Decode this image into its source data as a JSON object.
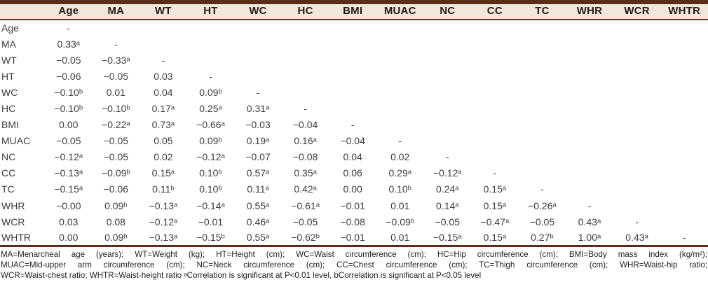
{
  "table": {
    "columns": [
      "",
      "Age",
      "MA",
      "WT",
      "HT",
      "WC",
      "HC",
      "BMI",
      "MUAC",
      "NC",
      "CC",
      "TC",
      "WHR",
      "WCR",
      "WHTR"
    ],
    "rows": [
      {
        "label": "Age",
        "values": [
          "-"
        ]
      },
      {
        "label": "MA",
        "values": [
          "0.33ᵃ",
          "-"
        ]
      },
      {
        "label": "WT",
        "values": [
          "−0.05",
          "−0.33ᵃ",
          "-"
        ]
      },
      {
        "label": "HT",
        "values": [
          "−0.06",
          "−0.05",
          "0.03",
          "-"
        ]
      },
      {
        "label": "WC",
        "values": [
          "−0.10ᵇ",
          "0.01",
          "0.04",
          "0.09ᵇ",
          "-"
        ]
      },
      {
        "label": "HC",
        "values": [
          "−0.10ᵇ",
          "−0.10ᵇ",
          "0.17ᵃ",
          "0.25ᵃ",
          "0.31ᵃ",
          "-"
        ]
      },
      {
        "label": "BMI",
        "values": [
          "0.00",
          "−0.22ᵃ",
          "0.73ᵃ",
          "−0.66ᵃ",
          "−0.03",
          "−0.04",
          "-"
        ]
      },
      {
        "label": "MUAC",
        "values": [
          "−0.05",
          "−0.05",
          "0.05",
          "0.09ᵇ",
          "0.19ᵃ",
          "0.16ᵃ",
          "−0.04",
          "-"
        ]
      },
      {
        "label": "NC",
        "values": [
          "−0.12ᵃ",
          "−0.05",
          "0.02",
          "−0.12ᵃ",
          "−0.07",
          "−0.08",
          "0.04",
          "0.02",
          "-"
        ]
      },
      {
        "label": "CC",
        "values": [
          "−0.13ᵃ",
          "−0.09ᵇ",
          "0.15ᵃ",
          "0.10ᵇ",
          "0.57ᵃ",
          "0.35ᵃ",
          "0.06",
          "0.29ᵃ",
          "−0.12ᵃ",
          "-"
        ]
      },
      {
        "label": "TC",
        "values": [
          "−0.15ᵃ",
          "−0.06",
          "0.11ᵇ",
          "0.10ᵇ",
          "0.11ᵃ",
          "0.42ᵃ",
          "0.00",
          "0.10ᵇ",
          "0.24ᵃ",
          "0.15ᵃ",
          "-"
        ]
      },
      {
        "label": "WHR",
        "values": [
          "−0.00",
          "0.09ᵇ",
          "−0.13ᵃ",
          "−0.14ᵃ",
          "0.55ᵃ",
          "−0.61ᵃ",
          "−0.01",
          "0.01",
          "0.14ᵃ",
          "0.15ᵃ",
          "−0.26ᵃ",
          "-"
        ]
      },
      {
        "label": "WCR",
        "values": [
          "0.03",
          "0.08",
          "−0.12ᵃ",
          "−0.01",
          "0.46ᵃ",
          "−0.05",
          "−0.08",
          "−0.09ᵇ",
          "−0.05",
          "−0.47ᵃ",
          "−0.05",
          "0.43ᵃ",
          "-"
        ]
      },
      {
        "label": "WHTR",
        "values": [
          "0.00",
          "0.09ᵇ",
          "−0.13ᵃ",
          "−0.15ᵇ",
          "0.55ᵃ",
          "−0.62ᵇ",
          "−0.01",
          "0.01",
          "−0.15ᵃ",
          "0.15ᵃ",
          "0.27ᵇ",
          "1.00ᵃ",
          "0.43ᵃ",
          "-"
        ]
      }
    ],
    "significance_markers": {
      "a": "P<0.01",
      "b": "P<0.05"
    }
  },
  "footer": {
    "lines": [
      "MA=Menarcheal age (years); WT=Weight (kg); HT=Height (cm); WC=Waist circumference (cm); HC=Hip circumference (cm); BMI=Body mass index (kg/m²);",
      "MUAC=Mid-upper arm circumference (cm); NC=Neck circumference (cm); CC=Chest circumference (cm); TC=Thigh circumference (cm); WHR=Waist-hip ratio;",
      "WCR=Waist-chest ratio; WHTR=Waist-height ratio ᵃCorrelation is significant at P<0.01 level, bCorrelation is significant at P<0.05 level"
    ]
  },
  "colors": {
    "thick_rule_brown": "#5b2c16",
    "header_underline_brown": "#70391c",
    "header_background": "#f3e6db",
    "body_text": "#3d3d3d"
  }
}
